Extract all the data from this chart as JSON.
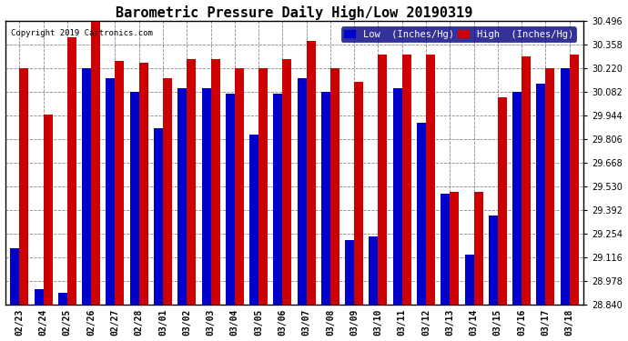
{
  "title": "Barometric Pressure Daily High/Low 20190319",
  "copyright": "Copyright 2019 Cartronics.com",
  "legend_low": "Low  (Inches/Hg)",
  "legend_high": "High  (Inches/Hg)",
  "dates": [
    "02/23",
    "02/24",
    "02/25",
    "02/26",
    "02/27",
    "02/28",
    "03/01",
    "03/02",
    "03/03",
    "03/04",
    "03/05",
    "03/06",
    "03/07",
    "03/08",
    "03/09",
    "03/10",
    "03/11",
    "03/12",
    "03/13",
    "03/14",
    "03/15",
    "03/16",
    "03/17",
    "03/18"
  ],
  "low_values": [
    29.17,
    28.93,
    28.91,
    30.22,
    30.16,
    30.08,
    29.87,
    30.1,
    30.1,
    30.07,
    29.83,
    30.07,
    30.16,
    30.08,
    29.22,
    29.24,
    30.1,
    29.9,
    29.49,
    29.13,
    29.36,
    30.08,
    30.13,
    30.22
  ],
  "high_values": [
    30.22,
    29.95,
    30.4,
    30.49,
    30.26,
    30.25,
    30.16,
    30.27,
    30.27,
    30.22,
    30.22,
    30.27,
    30.38,
    30.22,
    30.14,
    30.3,
    30.3,
    30.3,
    29.5,
    29.5,
    30.05,
    30.29,
    30.22,
    30.3
  ],
  "ymin": 28.84,
  "ymax": 30.496,
  "yticks": [
    28.84,
    28.978,
    29.116,
    29.254,
    29.392,
    29.53,
    29.668,
    29.806,
    29.944,
    30.082,
    30.22,
    30.358,
    30.496
  ],
  "bg_color": "#ffffff",
  "plot_bg_color": "#ffffff",
  "low_color": "#0000cc",
  "high_color": "#cc0000",
  "grid_color": "#888888",
  "bar_width": 0.38,
  "title_fontsize": 11,
  "tick_fontsize": 7,
  "legend_fontsize": 7.5,
  "copyright_fontsize": 6.5
}
